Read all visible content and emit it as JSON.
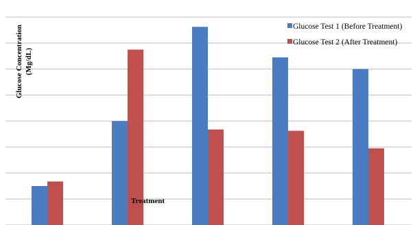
{
  "chart_data": {
    "type": "bar",
    "title": "",
    "xlabel": "Treatment",
    "ylabel_lines": [
      "Glucose Concentration",
      "(Mg/dL)"
    ],
    "categories": [
      "",
      "",
      "",
      "",
      ""
    ],
    "series": [
      {
        "name": "Glucose Test 1 (Before Treatment)",
        "color": "#4a7cc1",
        "values": [
          60,
          160,
          305,
          258,
          240
        ]
      },
      {
        "name": "Glucose Test 2 (After Treatment)",
        "color": "#c0504d",
        "values": [
          67,
          270,
          147,
          145,
          118
        ]
      }
    ],
    "ylim": [
      0,
      320
    ],
    "grid": true,
    "grid_step": 40,
    "legend_position": "top-right"
  }
}
